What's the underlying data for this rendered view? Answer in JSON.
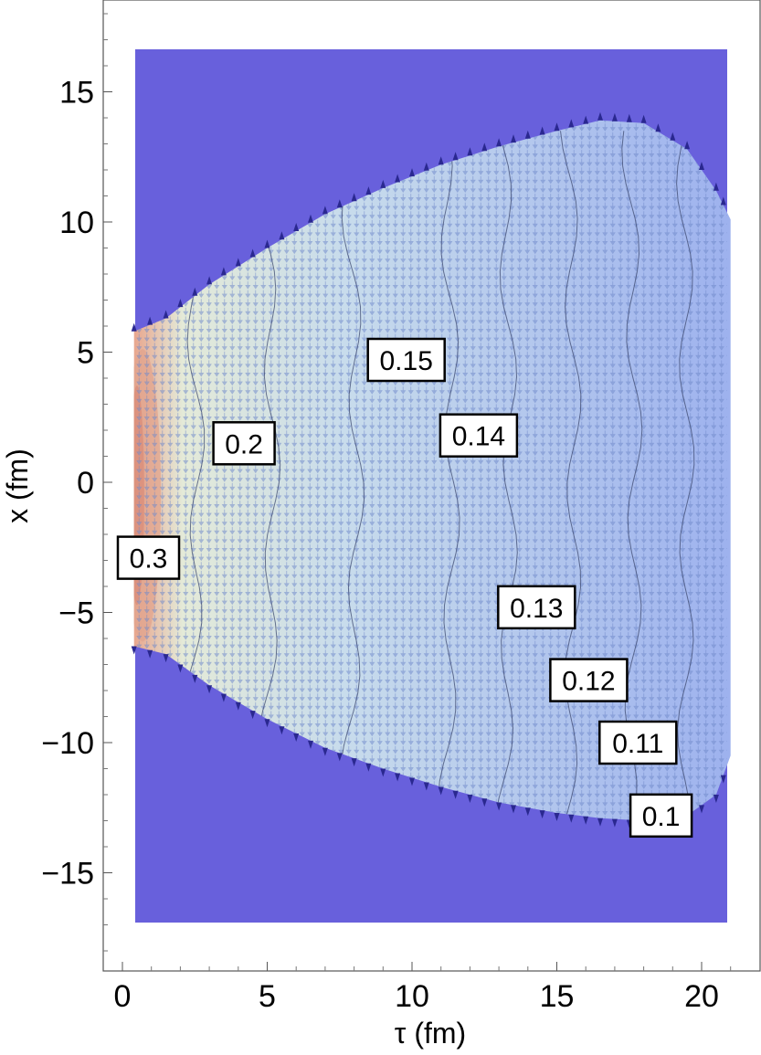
{
  "chart_data": {
    "type": "contour",
    "xlabel": "τ (fm)",
    "ylabel": "x (fm)",
    "xlim": [
      -0.7,
      21.8
    ],
    "ylim": [
      -18.8,
      18.8
    ],
    "data_region": {
      "x": [
        0.4,
        21.0
      ],
      "y": [
        -17.0,
        16.7
      ]
    },
    "grid": false,
    "x_ticks": [
      {
        "value": 0,
        "label": "0"
      },
      {
        "value": 5,
        "label": "5"
      },
      {
        "value": 10,
        "label": "10"
      },
      {
        "value": 15,
        "label": "15"
      },
      {
        "value": 20,
        "label": "20"
      }
    ],
    "y_ticks": [
      {
        "value": 15,
        "label": "15"
      },
      {
        "value": 10,
        "label": "10"
      },
      {
        "value": 5,
        "label": "5"
      },
      {
        "value": 0,
        "label": "0"
      },
      {
        "value": -5,
        "label": "−5"
      },
      {
        "value": -10,
        "label": "−10"
      },
      {
        "value": -15,
        "label": "−15"
      }
    ],
    "contour_levels": [
      {
        "value": 0.3,
        "label": "0.3",
        "tau": 0.9,
        "x": -2.9
      },
      {
        "value": 0.2,
        "label": "0.2",
        "tau": 4.2,
        "x": 1.5
      },
      {
        "value": 0.15,
        "label": "0.15",
        "tau": 9.8,
        "x": 4.7
      },
      {
        "value": 0.14,
        "label": "0.14",
        "tau": 12.3,
        "x": 1.8
      },
      {
        "value": 0.13,
        "label": "0.13",
        "tau": 14.3,
        "x": -4.8
      },
      {
        "value": 0.12,
        "label": "0.12",
        "tau": 16.1,
        "x": -7.6
      },
      {
        "value": 0.11,
        "label": "0.11",
        "tau": 17.8,
        "x": -10.0
      },
      {
        "value": 0.1,
        "label": "0.1",
        "tau": 18.6,
        "x": -12.8
      }
    ],
    "boundary_upper": [
      [
        0.4,
        5.8
      ],
      [
        1.5,
        6.3
      ],
      [
        3,
        7.6
      ],
      [
        5,
        9.0
      ],
      [
        7,
        10.3
      ],
      [
        9,
        11.3
      ],
      [
        11,
        12.2
      ],
      [
        13,
        12.9
      ],
      [
        15,
        13.5
      ],
      [
        16.5,
        13.9
      ],
      [
        18,
        13.8
      ],
      [
        19.5,
        12.8
      ],
      [
        20.5,
        11.2
      ],
      [
        21.0,
        10.1
      ]
    ],
    "boundary_lower": [
      [
        0.4,
        -6.3
      ],
      [
        1.5,
        -6.6
      ],
      [
        3,
        -7.8
      ],
      [
        5,
        -9.1
      ],
      [
        7,
        -10.2
      ],
      [
        9,
        -11.0
      ],
      [
        11,
        -11.7
      ],
      [
        13,
        -12.3
      ],
      [
        15,
        -12.7
      ],
      [
        16.5,
        -12.9
      ],
      [
        18,
        -13.0
      ],
      [
        19.5,
        -12.8
      ],
      [
        20.5,
        -12.0
      ],
      [
        21.0,
        -10.5
      ]
    ],
    "colors": {
      "outside": "#6860dc",
      "hot": "#e8a890",
      "warm": "#e4ead8",
      "mid": "#c8dcec",
      "cool": "#9eb2ee",
      "contour_line": "#3e4a70",
      "arrow": "#7a92cc",
      "frame": "#444444"
    }
  }
}
